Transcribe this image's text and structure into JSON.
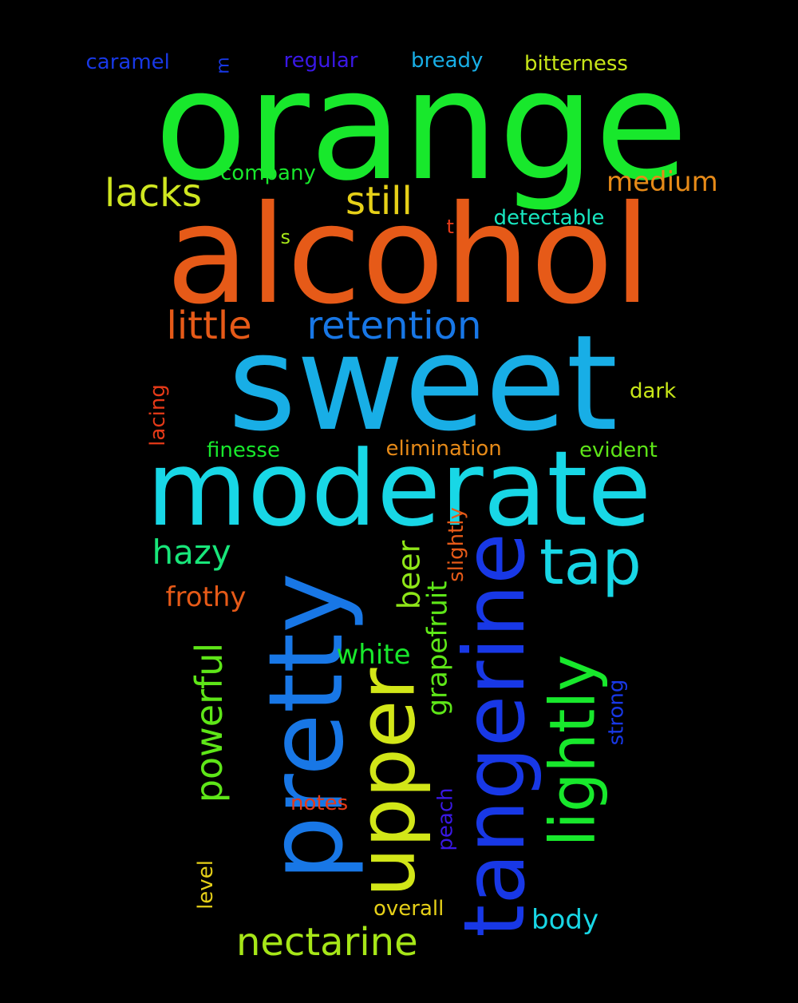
{
  "background_color": "#000000",
  "words": [
    {
      "text": "orange",
      "color": "#18E82C"
    },
    {
      "text": "alcohol",
      "color": "#E65A18"
    },
    {
      "text": "sweet",
      "color": "#18AEE6"
    },
    {
      "text": "moderate",
      "color": "#18D7E6"
    },
    {
      "text": "pretty",
      "color": "#1877E6"
    },
    {
      "text": "tangerine",
      "color": "#1838E6"
    },
    {
      "text": "upper",
      "color": "#D2E618"
    },
    {
      "text": "lightly",
      "color": "#18E82C"
    },
    {
      "text": "tap",
      "color": "#18D7E6"
    },
    {
      "text": "little",
      "color": "#E65A18"
    },
    {
      "text": "retention",
      "color": "#1877E6"
    },
    {
      "text": "lacks",
      "color": "#CFE620"
    },
    {
      "text": "still",
      "color": "#E6D018"
    },
    {
      "text": "medium",
      "color": "#E68A18"
    },
    {
      "text": "nectarine",
      "color": "#A6E618"
    },
    {
      "text": "hazy",
      "color": "#18E67A"
    },
    {
      "text": "frothy",
      "color": "#E65A18"
    },
    {
      "text": "powerful",
      "color": "#5EE618"
    },
    {
      "text": "beer",
      "color": "#8FE618"
    },
    {
      "text": "grapefruit",
      "color": "#5EE618"
    },
    {
      "text": "white",
      "color": "#18E82C"
    },
    {
      "text": "caramel",
      "color": "#1838E6"
    },
    {
      "text": "m",
      "color": "#1838E6"
    },
    {
      "text": "regular",
      "color": "#3A18E6"
    },
    {
      "text": "bready",
      "color": "#18AEE6"
    },
    {
      "text": "bitterness",
      "color": "#C8E618"
    },
    {
      "text": "company",
      "color": "#18E82C"
    },
    {
      "text": "detectable",
      "color": "#18E6C0"
    },
    {
      "text": "s",
      "color": "#A6E618"
    },
    {
      "text": "t",
      "color": "#E63A18"
    },
    {
      "text": "dark",
      "color": "#C8E618"
    },
    {
      "text": "lacing",
      "color": "#E63A18"
    },
    {
      "text": "finesse",
      "color": "#18E82C"
    },
    {
      "text": "elimination",
      "color": "#E68A18"
    },
    {
      "text": "evident",
      "color": "#5EE618"
    },
    {
      "text": "slightly",
      "color": "#E65A18"
    },
    {
      "text": "strong",
      "color": "#1838E6"
    },
    {
      "text": "notes",
      "color": "#E63A18"
    },
    {
      "text": "peach",
      "color": "#3A18E6"
    },
    {
      "text": "level",
      "color": "#E6D018"
    },
    {
      "text": "overall",
      "color": "#E6D018"
    },
    {
      "text": "body",
      "color": "#18D7E6"
    }
  ]
}
